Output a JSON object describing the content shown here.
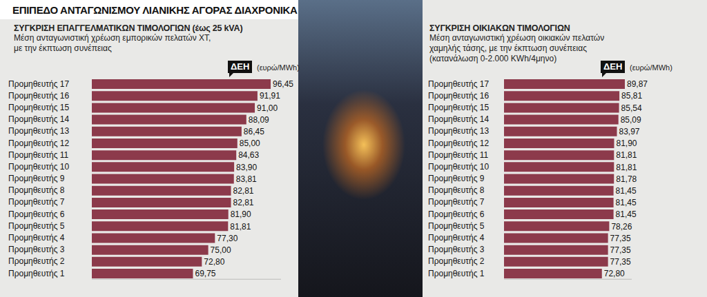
{
  "title": "ΕΠΙΠΕΔΟ ΑΝΤΑΓΩΝΙΣΜΟΥ ΛΙΑΝΙΚΗΣ ΑΓΟΡΑΣ ΔΙΑΧΡΟΝΙΚΑ",
  "chart_data": [
    {
      "type": "bar",
      "orientation": "horizontal",
      "title": "ΣΥΓΚΡΙΣΗ ΕΠΑΓΓΕΛΜΑΤΙΚΩΝ ΤΙΜΟΛΟΓΙΩΝ (έως 25 kVA)",
      "subtitle": [
        "Μέση ανταγωνιστική χρέωση εμπορικών πελατών ΧΤ,",
        "με την έκπτωση συνέπειας"
      ],
      "xlabel": "(ευρώ/MWh)",
      "annotations": [
        {
          "text": "ΔΕΗ",
          "category": "Προμηθευτής 17"
        }
      ],
      "categories": [
        "Προμηθευτής 17",
        "Προμηθευτής 16",
        "Προμηθευτής 15",
        "Προμηθευτής 14",
        "Προμηθευτής 13",
        "Προμηθευτής 12",
        "Προμηθευτής 11",
        "Προμηθευτής 10",
        "Προμηθευτής 9",
        "Προμηθευτής 8",
        "Προμηθευτής 7",
        "Προμηθευτής 6",
        "Προμηθευτής 5",
        "Προμηθευτής 4",
        "Προμηθευτής 3",
        "Προμηθευτής 2",
        "Προμηθευτής 1"
      ],
      "values": [
        96.45,
        91.91,
        91,
        88.09,
        86.45,
        85,
        84.63,
        83.9,
        83.81,
        82.81,
        82.81,
        81.9,
        81.81,
        77.3,
        75,
        72.8,
        69.75
      ],
      "value_labels": [
        "96,45",
        "91,91",
        "91,00",
        "88,09",
        "86,45",
        "85,00",
        "84,63",
        "83,90",
        "83,81",
        "82,81",
        "82,81",
        "81,90",
        "81,81",
        "77,30",
        "75,00",
        "72,80",
        "69,75"
      ],
      "color": "#8c3a4b",
      "xlim": [
        35,
        100
      ],
      "xticks": [
        35,
        100
      ],
      "grid": false,
      "data_labels": true,
      "tick_labels": "y"
    },
    {
      "type": "bar",
      "orientation": "horizontal",
      "title": "ΣΥΓΚΡΙΣΗ ΟΙΚΙΑΚΩΝ ΤΙΜΟΛΟΓΙΩΝ",
      "subtitle": [
        "Μέση ανταγωνιστική χρέωση οικιακών πελατών",
        "χαμηλής τάσης, με την έκπτωση συνέπειας",
        "(κατανάλωση 0-2.000 KWh/4μηνο)"
      ],
      "xlabel": "(ευρώ/MWh)",
      "annotations": [
        {
          "text": "ΔΕΗ",
          "category": "Προμηθευτής 17"
        }
      ],
      "categories": [
        "Προμηθευτής 17",
        "Προμηθευτής 16",
        "Προμηθευτής 15",
        "Προμηθευτής 14",
        "Προμηθευτής 13",
        "Προμηθευτής 12",
        "Προμηθευτής 11",
        "Προμηθευτής 10",
        "Προμηθευτής 9",
        "Προμηθευτής 8",
        "Προμηθευτής 7",
        "Προμηθευτής 6",
        "Προμηθευτής 5",
        "Προμηθευτής 4",
        "Προμηθευτής 3",
        "Προμηθευτής 2",
        "Προμηθευτής 1"
      ],
      "values": [
        89.87,
        85.81,
        85.54,
        85.09,
        83.97,
        81.9,
        81.81,
        81.81,
        81.78,
        81.45,
        81.45,
        81.45,
        78.26,
        77.35,
        77.35,
        77.35,
        72.8
      ],
      "value_labels": [
        "89,87",
        "85,81",
        "85,54",
        "85,09",
        "83,97",
        "81,90",
        "81,81",
        "81,81",
        "81,78",
        "81,45",
        "81,45",
        "81,45",
        "78,26",
        "77,35",
        "77,35",
        "77,35",
        "72,80"
      ],
      "color": "#8c3a4b",
      "xlim": [
        0,
        95
      ],
      "xticks": [
        0,
        95
      ],
      "grid": false,
      "data_labels": true,
      "tick_labels": "y"
    }
  ]
}
